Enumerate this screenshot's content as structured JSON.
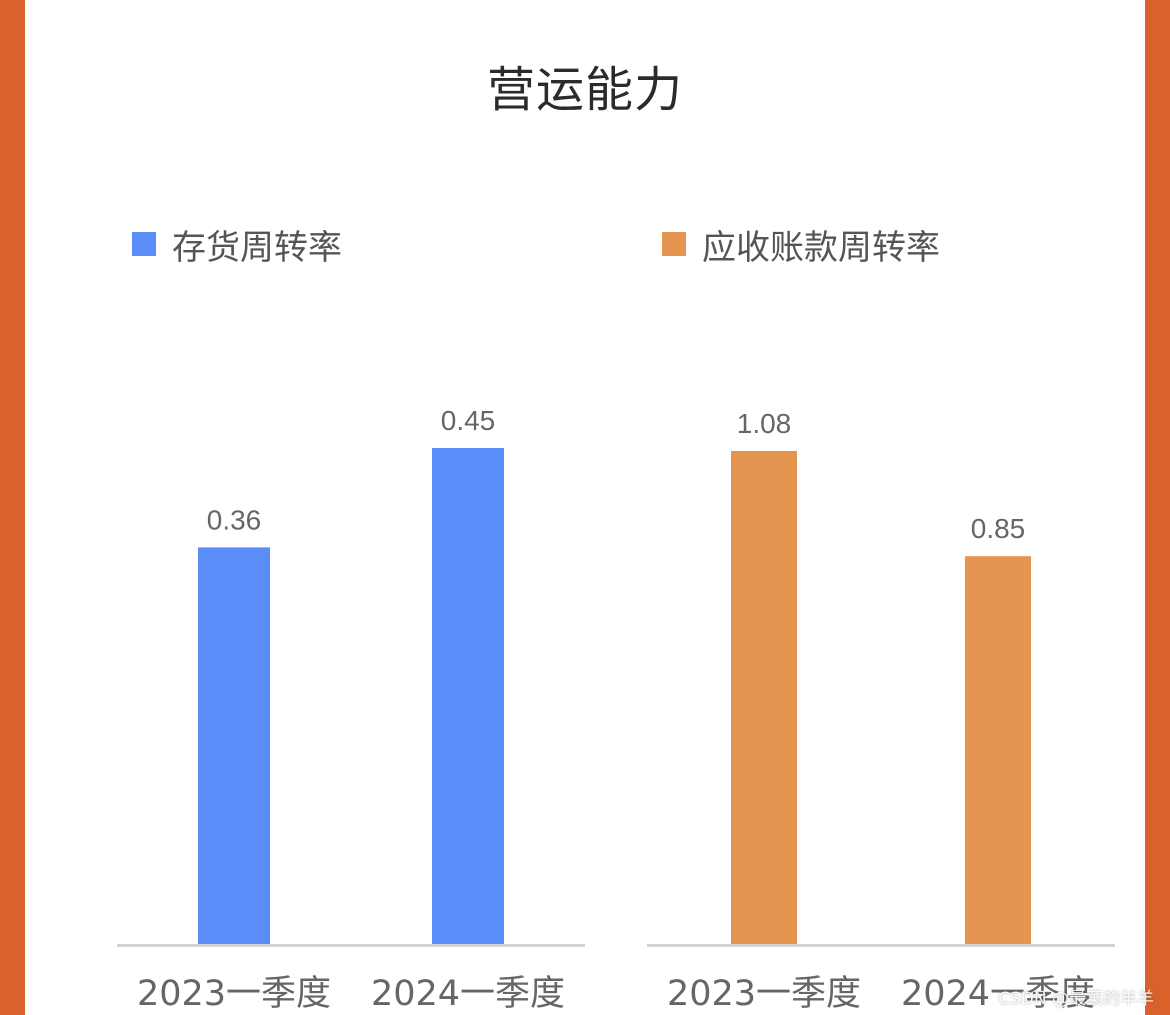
{
  "page": {
    "title": "营运能力",
    "watermark": "CSDN @最菜的羊羊",
    "frame_color": "#d9612a"
  },
  "chart_data": [
    {
      "type": "bar",
      "categories": [
        "2023一季度",
        "2024一季度"
      ],
      "series": [
        {
          "name": "存货周转率",
          "values": [
            0.36,
            0.45
          ],
          "color": "#5a8df8"
        }
      ],
      "ylim": [
        0,
        0.45
      ],
      "grid": false,
      "legend": "top-left"
    },
    {
      "type": "bar",
      "categories": [
        "2023一季度",
        "2024一季度"
      ],
      "series": [
        {
          "name": "应收账款周转率",
          "values": [
            1.08,
            0.85
          ],
          "color": "#e5954f"
        }
      ],
      "ylim": [
        0,
        1.08
      ],
      "grid": false,
      "legend": "top-left"
    }
  ]
}
